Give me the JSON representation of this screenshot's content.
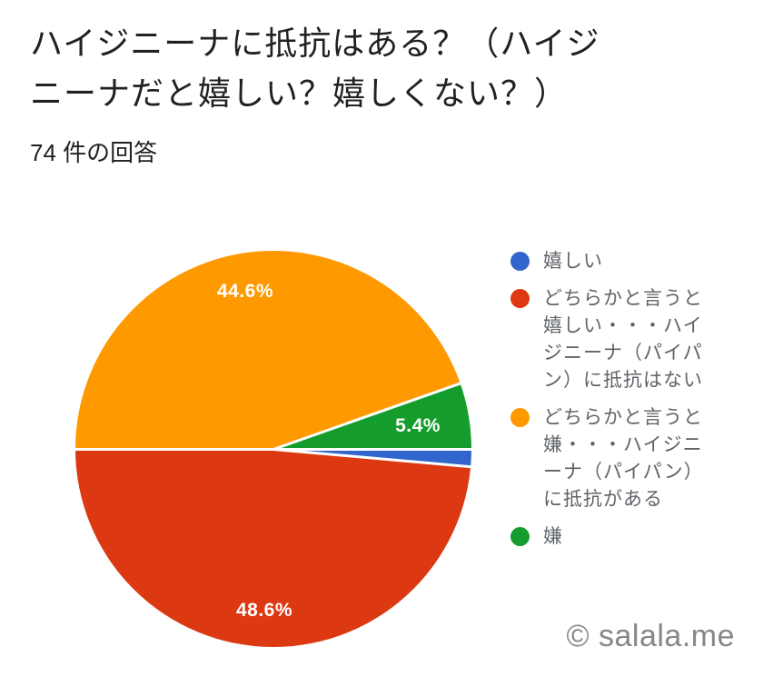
{
  "header": {
    "title": "ハイジニーナに抵抗はある？（ハイジ\nニーナだと嬉しい？嬉しくない？）",
    "response_count": "74 件の回答"
  },
  "chart_data": {
    "type": "pie",
    "title": "ハイジニーナに抵抗はある？（ハイジニーナだと嬉しい？嬉しくない？）",
    "subtitle": "74 件の回答",
    "total_responses": 74,
    "start_angle": "east, clockwise",
    "legend_position": "right",
    "slices": [
      {
        "label": "嬉しい",
        "percent": 1.4,
        "color": "#3366cc",
        "data_label": ""
      },
      {
        "label": "どちらかと言うと嬉しい・・・ハイジニーナ（パイパン）に抵抗はない",
        "percent": 48.6,
        "color": "#dc3912",
        "data_label": "48.6%"
      },
      {
        "label": "どちらかと言うと嫌・・・ハイジニーナ（パイパン）に抵抗がある",
        "percent": 44.6,
        "color": "#ff9900",
        "data_label": "44.6%"
      },
      {
        "label": "嫌",
        "percent": 5.4,
        "color": "#149d2c",
        "data_label": "5.4%"
      }
    ]
  },
  "legend": {
    "items": [
      {
        "label": "嬉しい",
        "color": "#3366cc"
      },
      {
        "label": "どちらかと言うと\n嬉しい・・・ハイ\nジニーナ（パイパ\nン）に抵抗はない",
        "color": "#dc3912"
      },
      {
        "label": "どちらかと言うと\n嫌・・・ハイジニ\nーナ（パイパン）\nに抵抗がある",
        "color": "#ff9900"
      },
      {
        "label": "嫌",
        "color": "#149d2c"
      }
    ]
  },
  "watermark": {
    "text": "© salala.me"
  },
  "colors": {
    "background": "#ffffff",
    "title_text": "#212121",
    "legend_text": "#5f6368",
    "slice_separator": "#ffffff",
    "watermark_text": "#878787"
  }
}
